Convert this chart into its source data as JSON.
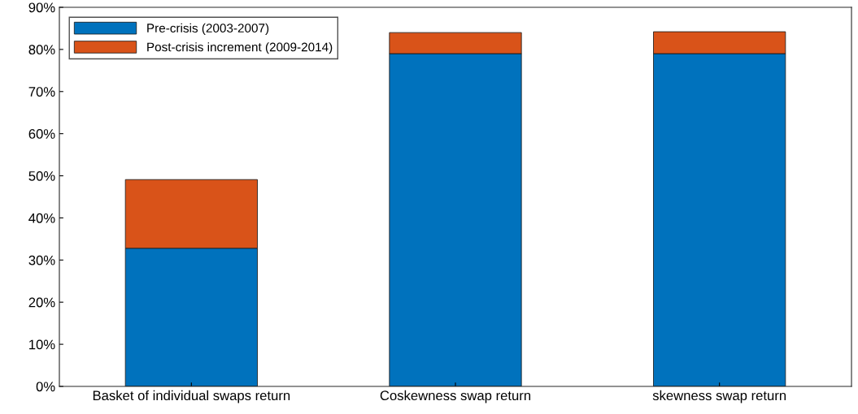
{
  "chart_data": {
    "type": "bar",
    "stacked": true,
    "categories": [
      "Basket of individual swaps return",
      "Coskewness swap return",
      "skewness swap return"
    ],
    "series": [
      {
        "name": "Pre-crisis (2003-2007)",
        "color": "#0072bd",
        "values": [
          32.8,
          79.0,
          79.0
        ]
      },
      {
        "name": "Post-crisis increment (2009-2014)",
        "color": "#d95319",
        "values": [
          16.3,
          5.0,
          5.2
        ]
      }
    ],
    "ylim": [
      0,
      90
    ],
    "yticks": [
      {
        "value": 0,
        "label": "0%"
      },
      {
        "value": 10,
        "label": "10%"
      },
      {
        "value": 20,
        "label": "20%"
      },
      {
        "value": 30,
        "label": "30%"
      },
      {
        "value": 40,
        "label": "40%"
      },
      {
        "value": 50,
        "label": "50%"
      },
      {
        "value": 60,
        "label": "60%"
      },
      {
        "value": 70,
        "label": "70%"
      },
      {
        "value": 80,
        "label": "80%"
      },
      {
        "value": 90,
        "label": "90%"
      }
    ],
    "grid": false,
    "legend": "top left"
  }
}
